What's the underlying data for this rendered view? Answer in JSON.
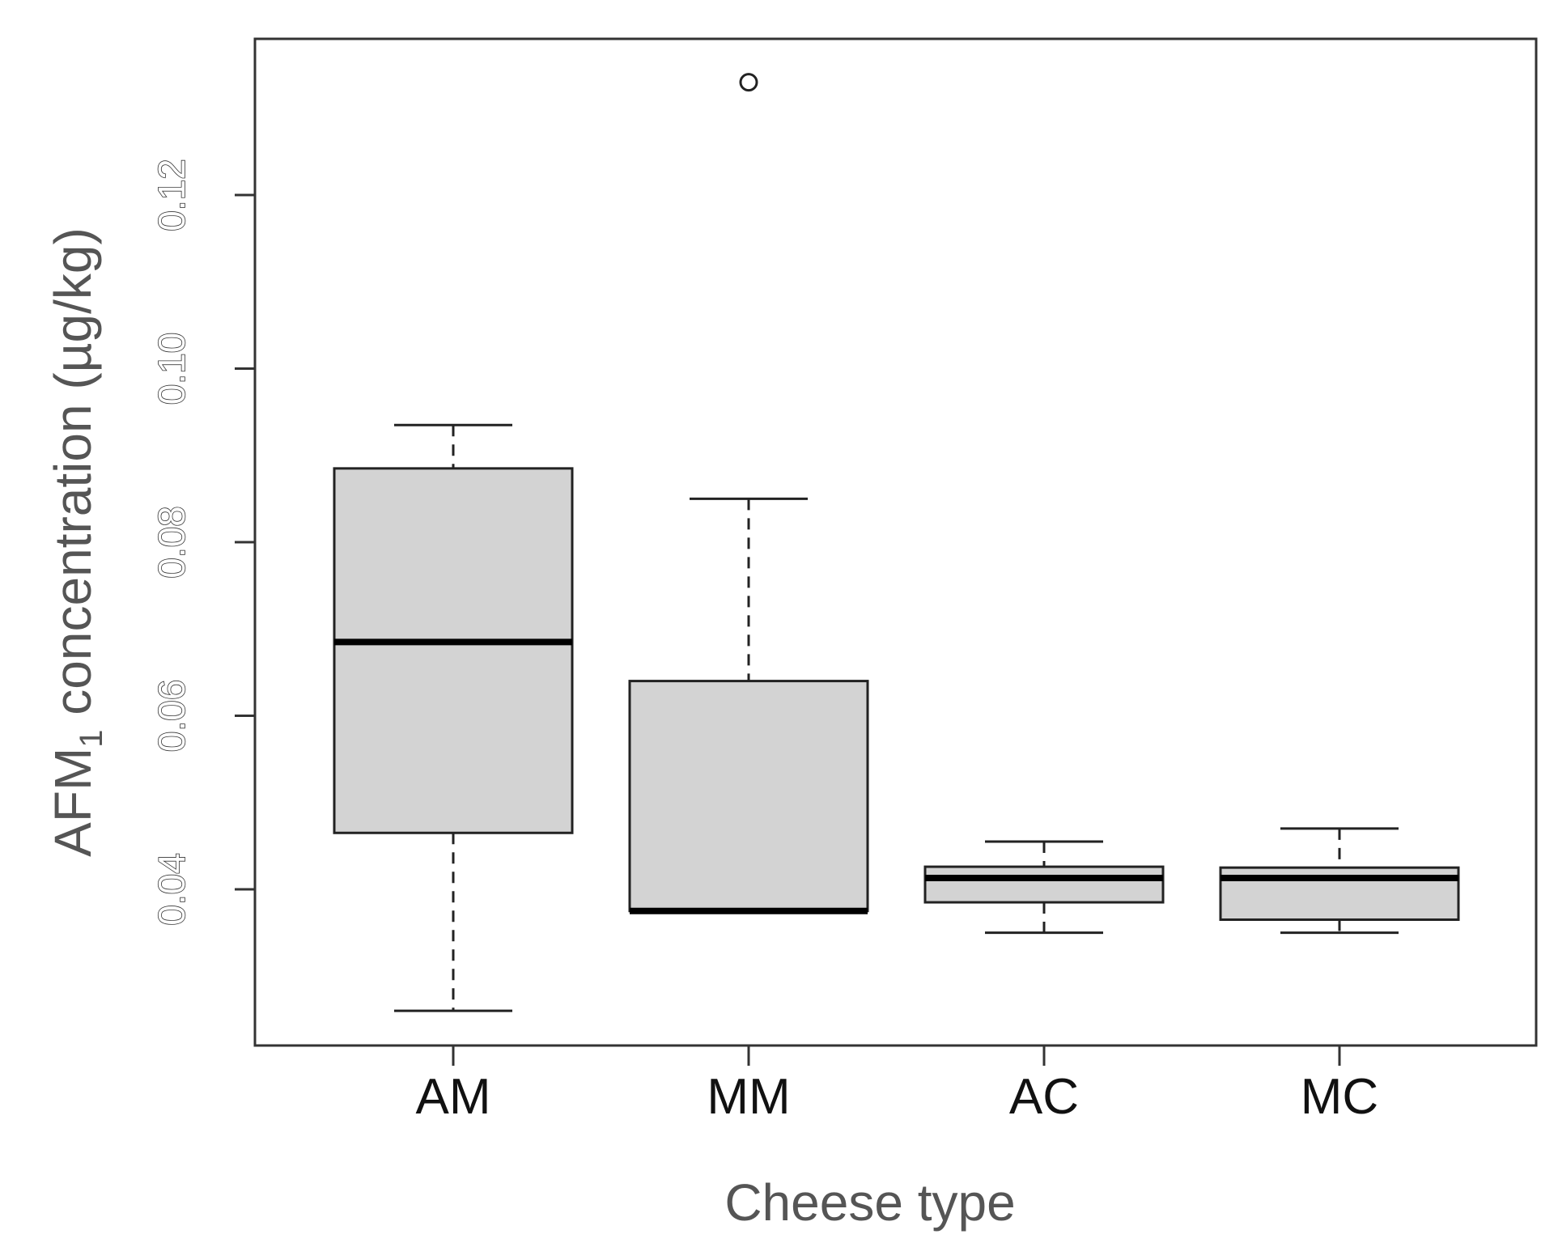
{
  "chart_data": {
    "type": "boxplot",
    "title": "",
    "xlabel": "Cheese type",
    "ylabel_parts": [
      "AFM",
      "1",
      " concentration (µg/kg)"
    ],
    "ylim": [
      0.022,
      0.138
    ],
    "yticks": [
      0.04,
      0.06,
      0.08,
      0.1,
      0.12
    ],
    "ytick_labels": [
      "0.04",
      "0.06",
      "0.08",
      "0.10",
      "0.12"
    ],
    "categories": [
      "AM",
      "MM",
      "AC",
      "MC"
    ],
    "boxes": [
      {
        "name": "AM",
        "whisker_low": 0.026,
        "q1": 0.0465,
        "median": 0.0685,
        "q3": 0.0885,
        "whisker_high": 0.0935,
        "outliers": []
      },
      {
        "name": "MM",
        "whisker_low": 0.0375,
        "q1": 0.0375,
        "median": 0.0375,
        "q3": 0.064,
        "whisker_high": 0.085,
        "outliers": [
          0.133
        ]
      },
      {
        "name": "AC",
        "whisker_low": 0.035,
        "q1": 0.0385,
        "median": 0.0413,
        "q3": 0.0426,
        "whisker_high": 0.0455,
        "outliers": []
      },
      {
        "name": "MC",
        "whisker_low": 0.035,
        "q1": 0.0365,
        "median": 0.0413,
        "q3": 0.0425,
        "whisker_high": 0.047,
        "outliers": []
      }
    ],
    "box_fill": "#d3d3d3",
    "line_color": "#222222",
    "grid": false
  }
}
